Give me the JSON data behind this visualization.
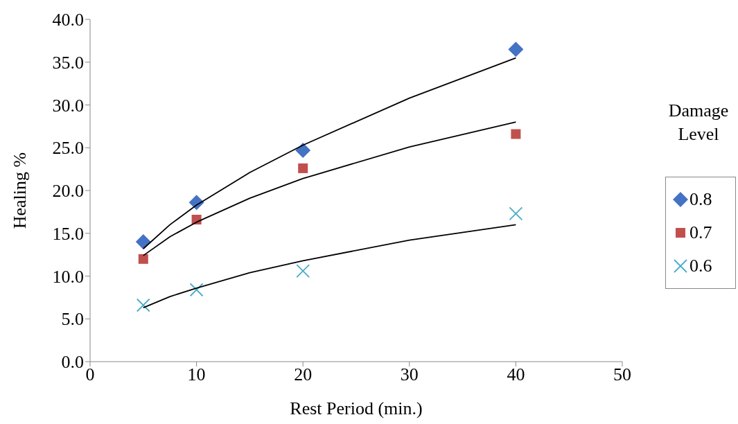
{
  "chart_data": {
    "type": "scatter",
    "xlabel": "Rest Period (min.)",
    "ylabel": "Healing %",
    "legend_title": "Damage Level",
    "legend": "right",
    "grid": false,
    "xlim": [
      0,
      50
    ],
    "xticks": [
      0,
      10,
      20,
      30,
      40,
      50
    ],
    "ylim": [
      0,
      40
    ],
    "yticks": [
      {
        "value": 0,
        "label": "0.0"
      },
      {
        "value": 5,
        "label": "5.0"
      },
      {
        "value": 10,
        "label": "10.0"
      },
      {
        "value": 15,
        "label": "15.0"
      },
      {
        "value": 20,
        "label": "20.0"
      },
      {
        "value": 25,
        "label": "25.0"
      },
      {
        "value": 30,
        "label": "30.0"
      },
      {
        "value": 35,
        "label": "35.0"
      },
      {
        "value": 40,
        "label": "40.0"
      }
    ],
    "series": [
      {
        "name": "0.8",
        "color": "#4472c4",
        "marker": "diamond",
        "x": [
          5,
          10,
          20,
          40
        ],
        "values": [
          14.0,
          18.6,
          24.7,
          36.5
        ]
      },
      {
        "name": "0.7",
        "color": "#c0504d",
        "marker": "square",
        "x": [
          5,
          10,
          20,
          40
        ],
        "values": [
          12.0,
          16.6,
          22.6,
          26.6
        ]
      },
      {
        "name": "0.6",
        "color": "#4bacc6",
        "marker": "cross",
        "x": [
          5,
          10,
          20,
          40
        ],
        "values": [
          6.6,
          8.4,
          10.6,
          17.3
        ]
      },
      {
        "type": "line",
        "color": "#000000",
        "marker": "none",
        "line_style": "solid",
        "x": [
          5,
          7.5,
          10,
          15,
          20,
          30,
          40
        ],
        "values": [
          13.2,
          16.0,
          18.3,
          22.1,
          25.3,
          30.8,
          35.5
        ]
      },
      {
        "type": "line",
        "color": "#000000",
        "marker": "none",
        "line_style": "solid",
        "x": [
          5,
          7.5,
          10,
          15,
          20,
          30,
          40
        ],
        "values": [
          12.4,
          14.6,
          16.3,
          19.1,
          21.4,
          25.1,
          28.0
        ]
      },
      {
        "type": "line",
        "color": "#000000",
        "marker": "none",
        "line_style": "solid",
        "x": [
          5,
          7.5,
          10,
          15,
          20,
          30,
          40
        ],
        "values": [
          6.3,
          7.6,
          8.6,
          10.4,
          11.8,
          14.2,
          16.0
        ]
      }
    ]
  }
}
